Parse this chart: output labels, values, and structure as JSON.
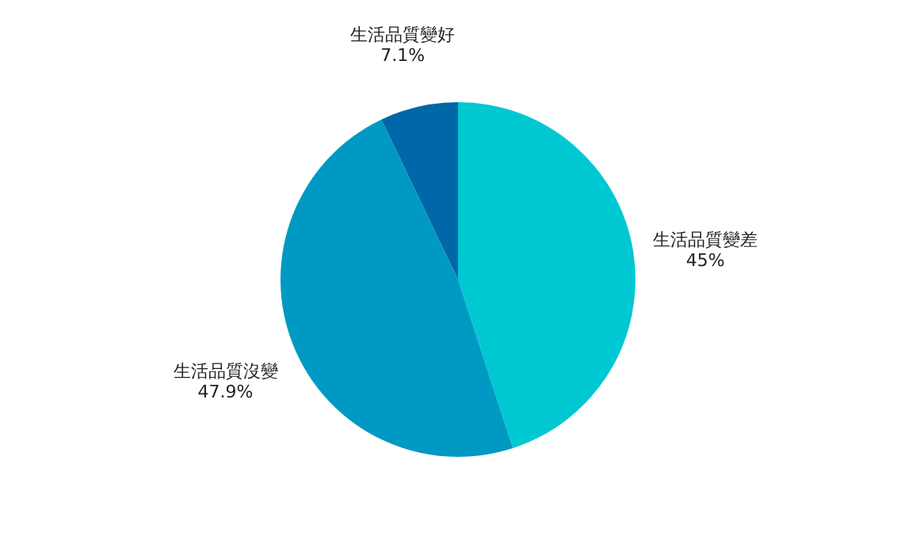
{
  "chart_data": {
    "type": "pie",
    "categories": [
      "生活品質變差",
      "生活品質沒變",
      "生活品質變好"
    ],
    "values": [
      45,
      47.9,
      7.1
    ],
    "colors": [
      "#00c8d2",
      "#0099c4",
      "#0068a8"
    ],
    "value_labels": [
      "45%",
      "47.9%",
      "7.1%"
    ],
    "legend": false
  }
}
